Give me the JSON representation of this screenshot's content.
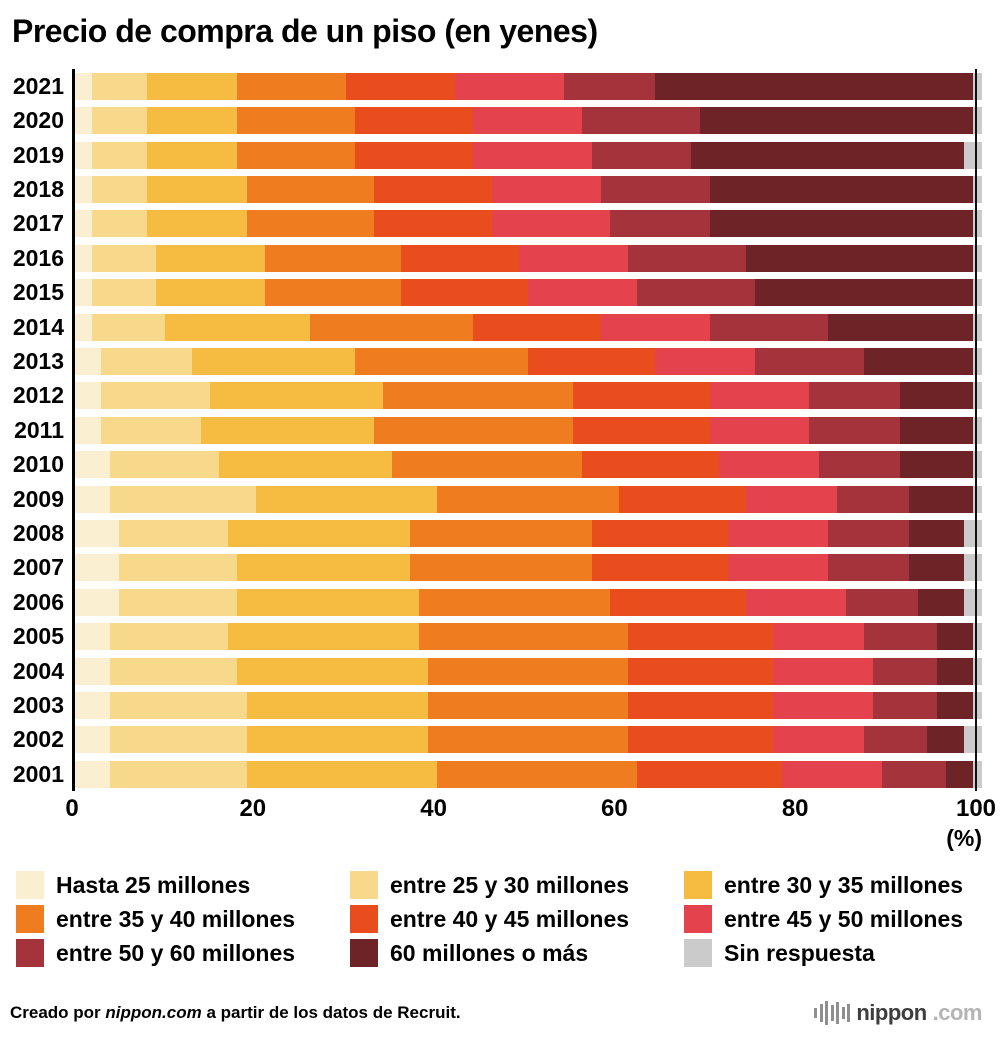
{
  "chart_data": {
    "type": "bar",
    "stacked": true,
    "orientation": "horizontal",
    "title": "Precio de compra de un piso (en yenes)",
    "x_unit": "(%)",
    "xlim": [
      0,
      100
    ],
    "x_ticks": [
      "0",
      "20",
      "40",
      "60",
      "80",
      "100"
    ],
    "legend_position": "bottom",
    "categories": [
      "2021",
      "2020",
      "2019",
      "2018",
      "2017",
      "2016",
      "2015",
      "2014",
      "2013",
      "2012",
      "2011",
      "2010",
      "2009",
      "2008",
      "2007",
      "2006",
      "2005",
      "2004",
      "2003",
      "2002",
      "2001"
    ],
    "segments": [
      {
        "label": "Hasta 25 millones",
        "color": "#FBEFD2"
      },
      {
        "label": "entre 25 y 30 millones",
        "color": "#F8D98B"
      },
      {
        "label": "entre 30 y 35 millones",
        "color": "#F5BC41"
      },
      {
        "label": "entre 35 y 40 millones",
        "color": "#EF7D20"
      },
      {
        "label": "entre 40 y 45 millones",
        "color": "#E94D1D"
      },
      {
        "label": "entre 45 y 50 millones",
        "color": "#E4434E"
      },
      {
        "label": "entre 50 y 60 millones",
        "color": "#A4333B"
      },
      {
        "label": "60 millones o más",
        "color": "#6E2327"
      },
      {
        "label": "Sin respuesta",
        "color": "#CBCBCB"
      }
    ],
    "values": [
      [
        2,
        6,
        10,
        12,
        12,
        12,
        10,
        35,
        1
      ],
      [
        2,
        6,
        10,
        13,
        13,
        12,
        13,
        30,
        1
      ],
      [
        2,
        6,
        10,
        13,
        13,
        13,
        11,
        30,
        2
      ],
      [
        2,
        6,
        11,
        14,
        13,
        12,
        12,
        29,
        1
      ],
      [
        2,
        6,
        11,
        14,
        13,
        13,
        11,
        29,
        1
      ],
      [
        2,
        7,
        12,
        15,
        13,
        12,
        13,
        25,
        1
      ],
      [
        2,
        7,
        12,
        15,
        14,
        12,
        13,
        24,
        1
      ],
      [
        2,
        8,
        16,
        18,
        14,
        12,
        13,
        16,
        1
      ],
      [
        3,
        10,
        18,
        19,
        14,
        11,
        12,
        12,
        1
      ],
      [
        3,
        12,
        19,
        21,
        15,
        11,
        10,
        8,
        1
      ],
      [
        3,
        11,
        19,
        22,
        15,
        11,
        10,
        8,
        1
      ],
      [
        4,
        12,
        19,
        21,
        15,
        11,
        9,
        8,
        1
      ],
      [
        4,
        16,
        20,
        20,
        14,
        10,
        8,
        7,
        1
      ],
      [
        5,
        12,
        20,
        20,
        15,
        11,
        9,
        6,
        2
      ],
      [
        5,
        13,
        19,
        20,
        15,
        11,
        9,
        6,
        2
      ],
      [
        5,
        13,
        20,
        21,
        15,
        11,
        8,
        5,
        2
      ],
      [
        4,
        13,
        21,
        23,
        16,
        10,
        8,
        4,
        1
      ],
      [
        4,
        14,
        21,
        22,
        16,
        11,
        7,
        4,
        1
      ],
      [
        4,
        15,
        20,
        22,
        16,
        11,
        7,
        4,
        1
      ],
      [
        4,
        15,
        20,
        22,
        16,
        10,
        7,
        4,
        2
      ],
      [
        4,
        15,
        21,
        22,
        16,
        11,
        7,
        3,
        1
      ]
    ]
  },
  "footer": {
    "credit_prefix": "Creado por ",
    "credit_site": "nippon.com",
    "credit_suffix": " a partir de los datos de Recruit.",
    "logo_name": "nippon",
    "logo_tld": ".com"
  }
}
